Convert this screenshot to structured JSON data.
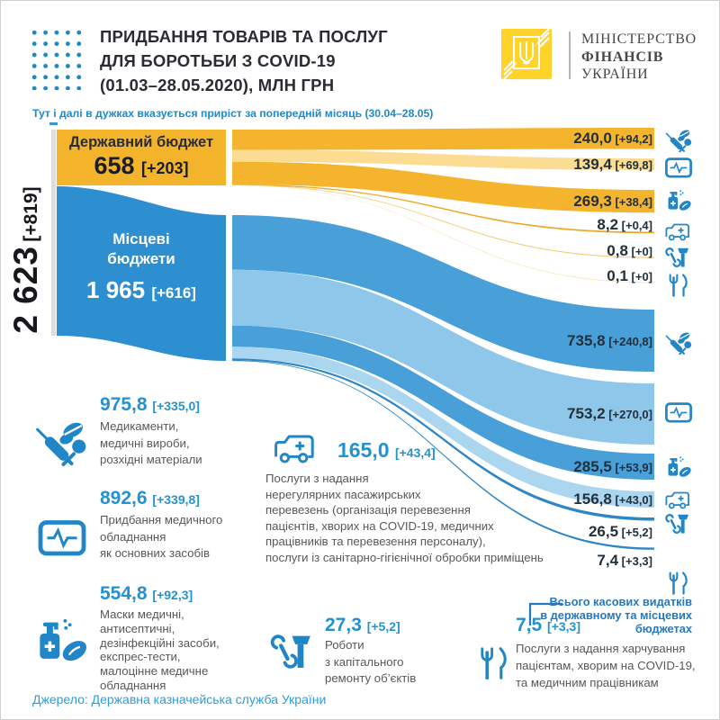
{
  "header": {
    "title_lines": [
      "ПРИДБАННЯ ТОВАРІВ ТА ПОСЛУГ",
      "ДЛЯ БОРОТЬБИ З COVID-19",
      "(01.03–28.05.2020), МЛН ГРН"
    ],
    "ministry_lines": [
      "МІНІСТЕРСТВО",
      "ФІНАНСІВ",
      "УКРАЇНИ"
    ],
    "note": "Тут і далі в дужках вказується приріст за попередній місяць (30.04–28.05)"
  },
  "total_label": {
    "value": "2 623",
    "delta": "[+819]"
  },
  "source_state": {
    "name": "Державний бюджет",
    "value": "658",
    "delta": "[+203]"
  },
  "source_local": {
    "name_lines": [
      "Місцеві",
      "бюджети"
    ],
    "value": "1 965",
    "delta": "[+616]"
  },
  "right_labels": [
    {
      "key": "state-medicines",
      "value": "240,0",
      "delta": "[+94,2]",
      "icon": "#icon-syringe-pills"
    },
    {
      "key": "state-equipment",
      "value": "139,4",
      "delta": "[+69,8]",
      "icon": "#icon-monitor"
    },
    {
      "key": "state-masks",
      "value": "269,3",
      "delta": "[+38,4]",
      "icon": "#icon-sanitizer-mask"
    },
    {
      "key": "state-transport",
      "value": "8,2",
      "delta": "[+0,4]",
      "icon": "#icon-ambulance"
    },
    {
      "key": "state-repair",
      "value": "0,8",
      "delta": "[+0]",
      "icon": "#icon-tools"
    },
    {
      "key": "state-food",
      "value": "0,1",
      "delta": "[+0]",
      "icon": "#icon-cutlery"
    },
    {
      "key": "local-medicines",
      "value": "735,8",
      "delta": "[+240,8]",
      "icon": "#icon-syringe-pills"
    },
    {
      "key": "local-equipment",
      "value": "753,2",
      "delta": "[+270,0]",
      "icon": "#icon-monitor"
    },
    {
      "key": "local-masks",
      "value": "285,5",
      "delta": "[+53,9]",
      "icon": "#icon-sanitizer-mask"
    },
    {
      "key": "local-transport",
      "value": "156,8",
      "delta": "[+43,0]",
      "icon": "#icon-ambulance"
    },
    {
      "key": "local-repair",
      "value": "26,5",
      "delta": "[+5,2]",
      "icon": "#icon-tools"
    },
    {
      "key": "local-food",
      "value": "7,4",
      "delta": "[+3,3]",
      "icon": "#icon-cutlery"
    }
  ],
  "annotations": {
    "medicines": {
      "value": "975,8",
      "delta": "[+335,0]",
      "icon_ref": "#icon-syringe-pills",
      "lines": [
        "Медикаменти,",
        "медичні вироби,",
        "розхідні матеріали"
      ]
    },
    "equipment": {
      "value": "892,6",
      "delta": "[+339,8]",
      "icon_ref": "#icon-monitor",
      "lines": [
        "Придбання медичного",
        "обладнання",
        "як основних засобів"
      ]
    },
    "masks": {
      "value": "554,8",
      "delta": "[+92,3]",
      "icon_ref": "#icon-sanitizer-mask",
      "lines": [
        "Маски медичні,",
        "антисептичні,",
        "дезінфекційні засоби,",
        "експрес-тести,",
        "малоцінне медичне",
        "обладнання"
      ]
    },
    "transport": {
      "value": "165,0",
      "delta": "[+43,4]",
      "icon_ref": "#icon-ambulance",
      "lines": [
        "Послуги з надання",
        "нерегулярних пасажирських",
        "перевезень (організація перевезення",
        "пацієнтів, хворих на COVID-19, медичних",
        "працівників та перевезення персоналу),",
        "послуги із санітарно-гігієнічної обробки приміщень"
      ]
    },
    "repair": {
      "value": "27,3",
      "delta": "[+5,2]",
      "icon_ref": "#icon-tools",
      "lines": [
        "Роботи",
        "з капітального",
        "ремонту об’єктів"
      ]
    },
    "food": {
      "value": "7,5",
      "delta": "[+3,3]",
      "icon_ref": "#icon-cutlery",
      "lines": [
        "Послуги з надання харчування",
        "пацієнтам, хворим на COVID-19,",
        "та медичним працівникам"
      ]
    },
    "total_note_lines": [
      "Всього касових видатків",
      "в державному та місцевих",
      "бюджетах"
    ]
  },
  "footer": {
    "source": "Джерело: Державна казначейська служба України"
  },
  "colors": {
    "state_box": "#f3b42c",
    "local_box": "#2e8fd0",
    "strip": "#dedede",
    "dash": "#2d9cdb",
    "title_text": "#2b2b33",
    "accent_number": "#2492cf",
    "desc_text": "#57585a",
    "note_blue": "#2778be",
    "footer_blue": "#2d9cdb",
    "icon_blue": "#2186c8",
    "band_label": "#22303c",
    "logo_yellow": "#ffd32a",
    "flows": {
      "gold": "#f5b42e",
      "goldLight": "#fbdc92",
      "goldDeep": "#eca828",
      "goldMid": "#f4cb70",
      "goldPale": "#f8e0aa",
      "blueMed": "#49a0d8",
      "blueLight": "#8fc7eb",
      "blueLighter": "#abd6f0",
      "blueDeep": "#2e86c6"
    }
  },
  "chart_data": {
    "type": "sankey",
    "title": "ПРИДБАННЯ ТОВАРІВ ТА ПОСЛУГ ДЛЯ БОРОТЬБИ З COVID-19 (01.03–28.05.2020), МЛН ГРН",
    "units": "млн грн",
    "total": {
      "label": "Всього касових видатків в державному та місцевих бюджетах",
      "value": 2623,
      "delta": 819
    },
    "sources": [
      {
        "name": "Державний бюджет",
        "value": 658,
        "delta": 203
      },
      {
        "name": "Місцеві бюджети",
        "value": 1965,
        "delta": 616
      }
    ],
    "targets": [
      {
        "name": "Медикаменти, медичні вироби, розхідні матеріали",
        "total": 975.8,
        "delta": 335.0
      },
      {
        "name": "Придбання медичного обладнання як основних засобів",
        "total": 892.6,
        "delta": 339.8
      },
      {
        "name": "Маски медичні, антисептичні, дезінфекційні засоби, експрес-тести, малоцінне медичне обладнання",
        "total": 554.8,
        "delta": 92.3
      },
      {
        "name": "Послуги з надання нерегулярних пасажирських перевезень (організація перевезення пацієнтів, хворих на COVID-19, медичних працівників та перевезення персоналу), послуги із санітарно-гігієнічної обробки приміщень",
        "total": 165.0,
        "delta": 43.4
      },
      {
        "name": "Роботи з капітального ремонту об’єктів",
        "total": 27.3,
        "delta": 5.2
      },
      {
        "name": "Послуги з надання харчування пацієнтам, хворим на COVID-19, та медичним працівникам",
        "total": 7.5,
        "delta": 3.3
      }
    ],
    "links": [
      {
        "source": "Державний бюджет",
        "target": "Медикаменти, медичні вироби, розхідні матеріали",
        "value": 240.0,
        "delta": 94.2
      },
      {
        "source": "Державний бюджет",
        "target": "Придбання медичного обладнання як основних засобів",
        "value": 139.4,
        "delta": 69.8
      },
      {
        "source": "Державний бюджет",
        "target": "Маски медичні, антисептичні, дезінфекційні засоби, експрес-тести, малоцінне медичне обладнання",
        "value": 269.3,
        "delta": 38.4
      },
      {
        "source": "Державний бюджет",
        "target": "Послуги з надання нерегулярних пасажирських перевезень, послуги із санітарно-гігієнічної обробки приміщень",
        "value": 8.2,
        "delta": 0.4
      },
      {
        "source": "Державний бюджет",
        "target": "Роботи з капітального ремонту об’єктів",
        "value": 0.8,
        "delta": 0
      },
      {
        "source": "Державний бюджет",
        "target": "Послуги з надання харчування пацієнтам, хворим на COVID-19, та медичним працівникам",
        "value": 0.1,
        "delta": 0
      },
      {
        "source": "Місцеві бюджети",
        "target": "Медикаменти, медичні вироби, розхідні матеріали",
        "value": 735.8,
        "delta": 240.8
      },
      {
        "source": "Місцеві бюджети",
        "target": "Придбання медичного обладнання як основних засобів",
        "value": 753.2,
        "delta": 270.0
      },
      {
        "source": "Місцеві бюджети",
        "target": "Маски медичні, антисептичні, дезінфекційні засоби, експрес-тести, малоцінне медичне обладнання",
        "value": 285.5,
        "delta": 53.9
      },
      {
        "source": "Місцеві бюджети",
        "target": "Послуги з надання нерегулярних пасажирських перевезень, послуги із санітарно-гігієнічної обробки приміщень",
        "value": 156.8,
        "delta": 43.0
      },
      {
        "source": "Місцеві бюджети",
        "target": "Роботи з капітального ремонту об’єктів",
        "value": 26.5,
        "delta": 5.2
      },
      {
        "source": "Місцеві бюджети",
        "target": "Послуги з надання харчування пацієнтам, хворим на COVID-19, та медичним працівникам",
        "value": 7.4,
        "delta": 3.3
      }
    ],
    "legend_position": "none",
    "grid": false
  }
}
